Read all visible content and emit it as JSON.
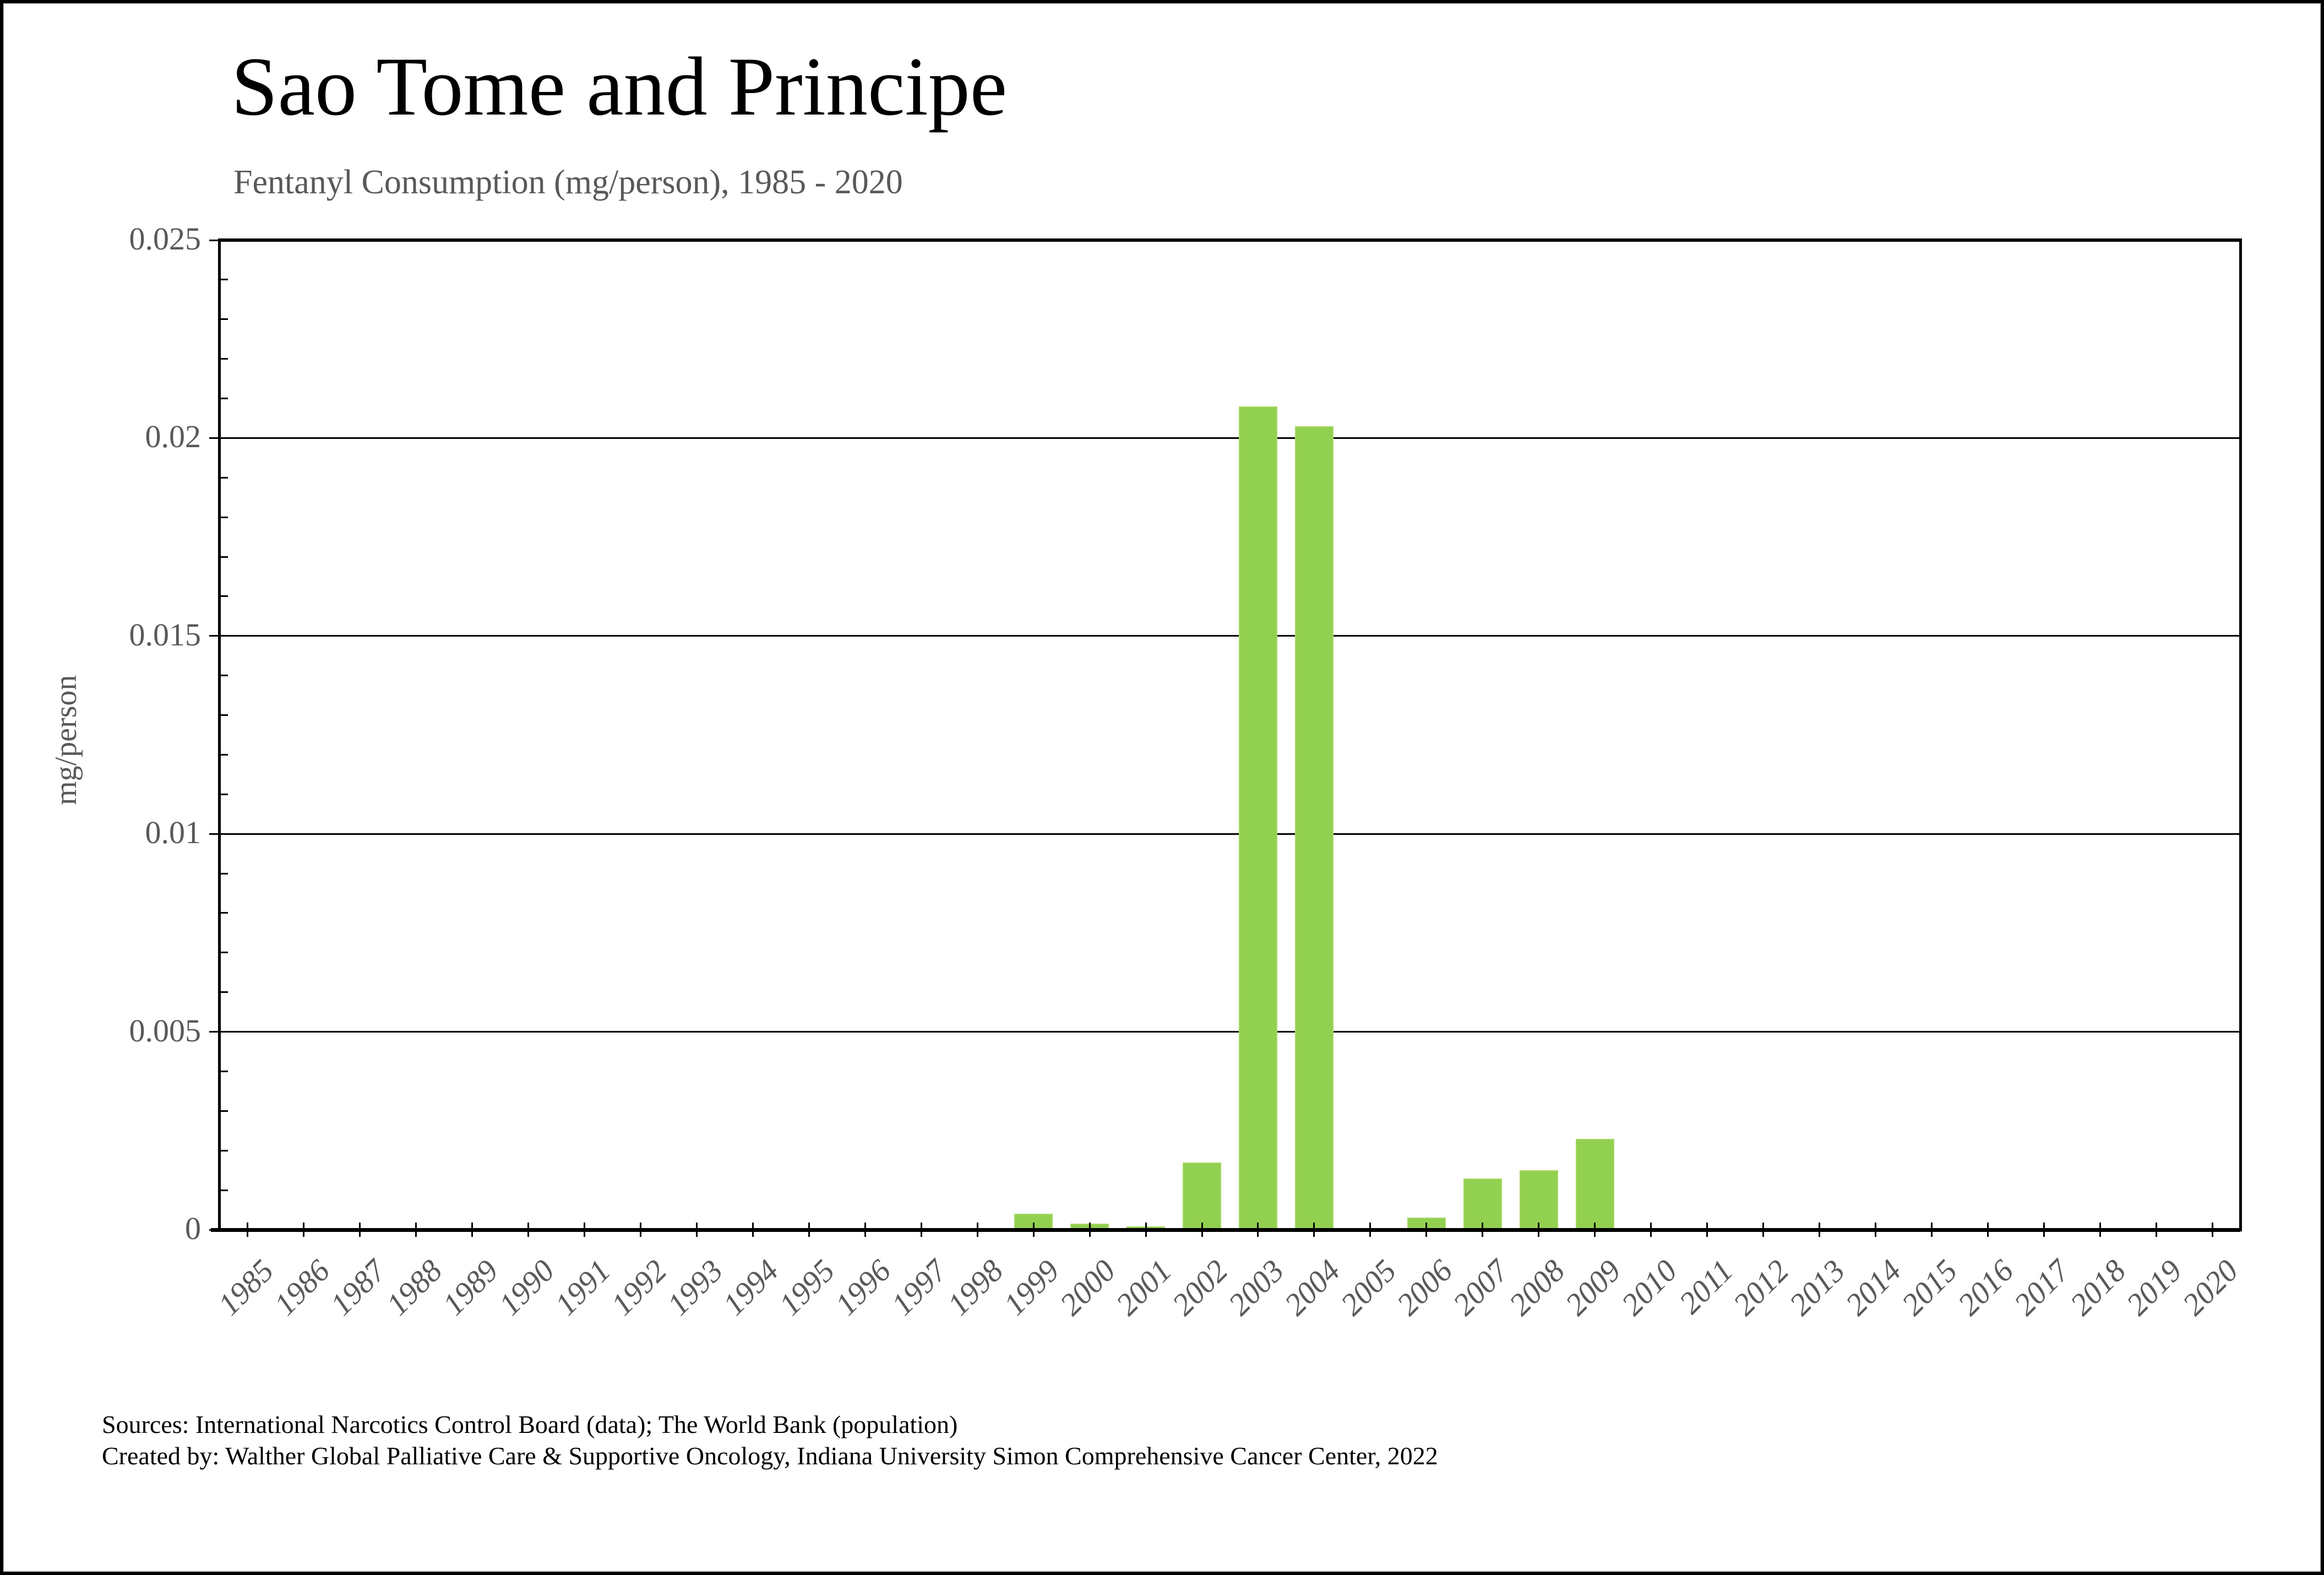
{
  "header": {
    "title": "Sao Tome and Principe",
    "subtitle": "Fentanyl Consumption (mg/person), 1985 - 2020"
  },
  "footer": {
    "source_line1": "Sources: International Narcotics Control Board (data); The World Bank (population)",
    "created_line2": "Created by: Walther Global Palliative Care & Supportive Oncology, Indiana University Simon Comprehensive Cancer Center, 2022"
  },
  "chart_data": {
    "type": "bar",
    "title": "Sao Tome and Principe",
    "subtitle": "Fentanyl Consumption (mg/person), 1985 - 2020",
    "xlabel": "",
    "ylabel": "mg/person",
    "categories": [
      1985,
      1986,
      1987,
      1988,
      1989,
      1990,
      1991,
      1992,
      1993,
      1994,
      1995,
      1996,
      1997,
      1998,
      1999,
      2000,
      2001,
      2002,
      2003,
      2004,
      2005,
      2006,
      2007,
      2008,
      2009,
      2010,
      2011,
      2012,
      2013,
      2014,
      2015,
      2016,
      2017,
      2018,
      2019,
      2020
    ],
    "values": [
      0,
      0,
      0,
      0,
      0,
      0,
      0,
      0,
      0,
      0,
      0,
      0,
      0,
      0,
      0.0004,
      0.00015,
      8e-05,
      0.0017,
      0.0208,
      0.0203,
      0,
      0.0003,
      0.0013,
      0.0015,
      0.0023,
      0,
      0,
      0,
      0,
      0,
      0,
      0,
      0,
      0,
      0,
      0
    ],
    "ylim": [
      0,
      0.025
    ],
    "ytick_step": 0.005,
    "ytick_labels": [
      "0",
      "0.005",
      "0.01",
      "0.015",
      "0.02",
      "0.025"
    ],
    "y_minor_step": 0.001,
    "grid": "horizontal-major",
    "legend": "none",
    "colors": {
      "bar_fill": "#92D050",
      "bar_edge": "#a5d865",
      "axis": "#000000",
      "gridline": "#000000",
      "tick_label": "#595959",
      "title": "#000000",
      "subtitle": "#595959",
      "background": "#FFFFFF",
      "frame_border": "#000000"
    }
  }
}
